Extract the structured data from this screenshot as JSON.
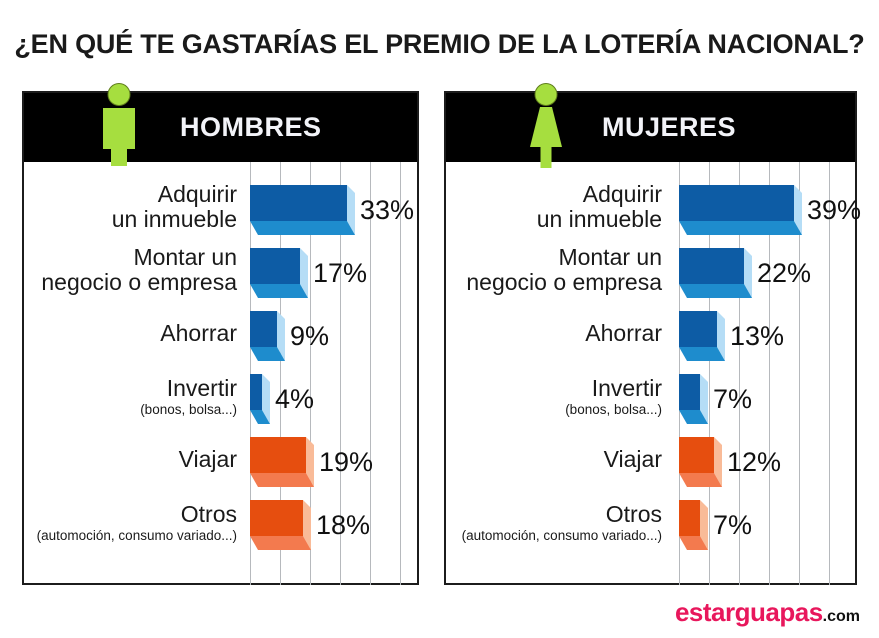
{
  "title": "¿EN QUÉ TE GASTARÍAS EL PREMIO DE LA LOTERÍA NACIONAL?",
  "chart_data": {
    "type": "bar",
    "orientation": "horizontal",
    "unit": "%",
    "title": "¿EN QUÉ TE GASTARÍAS EL PREMIO DE LA LOTERÍA NACIONAL?",
    "categories": [
      "Adquirir un inmueble",
      "Montar un negocio o empresa",
      "Ahorrar",
      "Invertir (bonos, bolsa...)",
      "Viajar",
      "Otros (automoción, consumo variado...)"
    ],
    "category_display": [
      {
        "lines": [
          "Adquirir",
          "un inmueble"
        ],
        "sub": "",
        "color": "blue"
      },
      {
        "lines": [
          "Montar un",
          "negocio o empresa"
        ],
        "sub": "",
        "color": "blue"
      },
      {
        "lines": [
          "Ahorrar"
        ],
        "sub": "",
        "color": "blue"
      },
      {
        "lines": [
          "Invertir"
        ],
        "sub": "(bonos, bolsa...)",
        "color": "blue"
      },
      {
        "lines": [
          "Viajar"
        ],
        "sub": "",
        "color": "orange"
      },
      {
        "lines": [
          "Otros"
        ],
        "sub": "(automoción, consumo variado...)",
        "color": "orange"
      }
    ],
    "series": [
      {
        "name": "HOMBRES",
        "values": [
          33,
          17,
          9,
          4,
          19,
          18
        ]
      },
      {
        "name": "MUJERES",
        "values": [
          39,
          22,
          13,
          7,
          12,
          7
        ]
      }
    ],
    "xlim": [
      0,
      60
    ],
    "gridline_step_percent": 10,
    "grid": true,
    "legend_position": "none",
    "value_labels": [
      "33%",
      "17%",
      "9%",
      "4%",
      "19%",
      "18%",
      "39%",
      "22%",
      "13%",
      "7%",
      "12%",
      "7%"
    ]
  },
  "colors": {
    "bar_blue_front": "#0d5ca5",
    "bar_blue_bottom": "#1e8ccd",
    "bar_blue_side": "#b5ddf6",
    "bar_orange_front": "#e64e0f",
    "bar_orange_bottom": "#f37a4e",
    "bar_orange_side": "#f9bb98",
    "header_bg": "#000000",
    "header_text": "#f2f3f8",
    "figure_green": "#a6de3f",
    "figure_outline": "#5f7d1c",
    "grid": "#b6b9bd",
    "panel_border": "#1c1c1c",
    "logo_pink": "#e8175c",
    "title_text": "#1a1a1a"
  },
  "logo": {
    "name": "estarguapas",
    "tld": ".com"
  }
}
